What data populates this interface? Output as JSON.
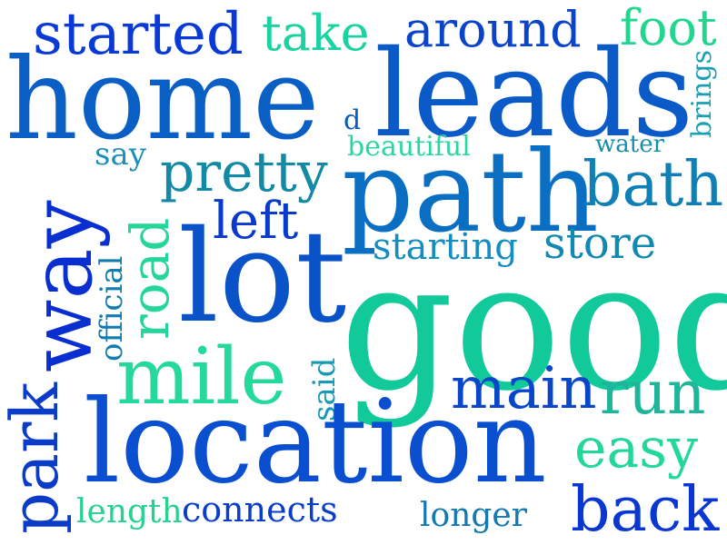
{
  "words": {
    "started": {
      "text": "started",
      "color": "#0a3ad6"
    },
    "take": {
      "text": "take",
      "color": "#1ad3a0"
    },
    "around": {
      "text": "around",
      "color": "#0b43c9"
    },
    "foot": {
      "text": "foot",
      "color": "#21d68e"
    },
    "home": {
      "text": "home",
      "color": "#0a5fc4"
    },
    "d": {
      "text": "d",
      "color": "#0b5fb8"
    },
    "leads": {
      "text": "leads",
      "color": "#0a5bc8"
    },
    "brings": {
      "text": "brings",
      "color": "#1a9fb3"
    },
    "say": {
      "text": "say",
      "color": "#1e8fb7"
    },
    "beautiful": {
      "text": "beautiful",
      "color": "#2bd6a2"
    },
    "water": {
      "text": "water",
      "color": "#138fa8"
    },
    "pretty": {
      "text": "pretty",
      "color": "#128aa6"
    },
    "path": {
      "text": "path",
      "color": "#0a6fc2"
    },
    "bath": {
      "text": "bath",
      "color": "#0f7fb5"
    },
    "way": {
      "text": "way",
      "color": "#0a2fd0"
    },
    "left": {
      "text": "left",
      "color": "#0a3acc"
    },
    "road": {
      "text": "road",
      "color": "#25d69a"
    },
    "official": {
      "text": "official",
      "color": "#0f7dae"
    },
    "lot": {
      "text": "lot",
      "color": "#0a52c8"
    },
    "starting": {
      "text": "starting",
      "color": "#168dc0"
    },
    "store": {
      "text": "store",
      "color": "#128ab0"
    },
    "good": {
      "text": "good",
      "color": "#12c99a"
    },
    "mile": {
      "text": "mile",
      "color": "#25d99a"
    },
    "said": {
      "text": "said",
      "color": "#169ab5"
    },
    "main": {
      "text": "main",
      "color": "#0a46c8"
    },
    "run": {
      "text": "run",
      "color": "#1fb59a"
    },
    "park": {
      "text": "park",
      "color": "#0a3cc8"
    },
    "location": {
      "text": "location",
      "color": "#0a4fd0"
    },
    "easy": {
      "text": "easy",
      "color": "#22d899"
    },
    "length": {
      "text": "length",
      "color": "#27d190"
    },
    "connects": {
      "text": "connects",
      "color": "#0a3dc8"
    },
    "longer": {
      "text": "longer",
      "color": "#1479b0"
    },
    "back": {
      "text": "back",
      "color": "#0a37d2"
    }
  }
}
